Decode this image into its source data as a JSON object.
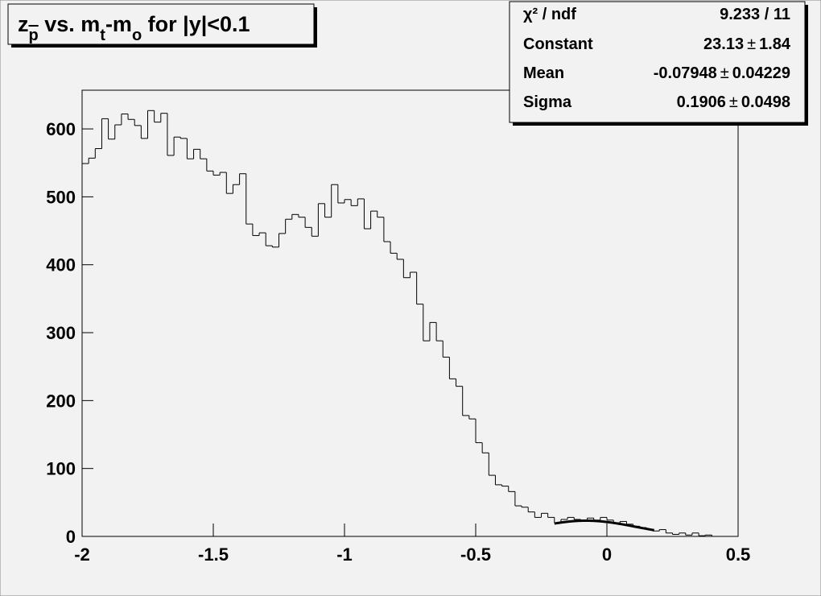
{
  "chart_data": {
    "type": "histogram",
    "title": [
      {
        "text": "z"
      },
      {
        "text": "p",
        "sub": true,
        "overline": true
      },
      {
        "text": " vs. m"
      },
      {
        "text": "t",
        "sub": true
      },
      {
        "text": "-m"
      },
      {
        "text": "o",
        "sub": true
      },
      {
        "text": " for |y|<0.1"
      }
    ],
    "bins": [
      -2,
      -1.975,
      -1.95,
      -1.925,
      -1.9,
      -1.875,
      -1.85,
      -1.825,
      -1.8,
      -1.775,
      -1.75,
      -1.725,
      -1.7,
      -1.675,
      -1.65,
      -1.625,
      -1.6,
      -1.575,
      -1.55,
      -1.525,
      -1.5,
      -1.475,
      -1.45,
      -1.425,
      -1.4,
      -1.375,
      -1.35,
      -1.325,
      -1.3,
      -1.275,
      -1.25,
      -1.225,
      -1.2,
      -1.175,
      -1.15,
      -1.125,
      -1.1,
      -1.075,
      -1.05,
      -1.025,
      -1,
      -0.975,
      -0.95,
      -0.925,
      -0.9,
      -0.875,
      -0.85,
      -0.825,
      -0.8,
      -0.775,
      -0.75,
      -0.725,
      -0.7,
      -0.675,
      -0.65,
      -0.625,
      -0.6,
      -0.575,
      -0.55,
      -0.525,
      -0.5,
      -0.475,
      -0.45,
      -0.425,
      -0.4,
      -0.375,
      -0.35,
      -0.325,
      -0.3,
      -0.275,
      -0.25,
      -0.225,
      -0.2,
      -0.175,
      -0.15,
      -0.125,
      -0.1,
      -0.075,
      -0.05,
      -0.025,
      0,
      0.025,
      0.05,
      0.075,
      0.1,
      0.125,
      0.15,
      0.175,
      0.2,
      0.225,
      0.25,
      0.275,
      0.3,
      0.325,
      0.35,
      0.375,
      0.4,
      0.425,
      0.45,
      0.475,
      0.5
    ],
    "values": [
      549,
      557,
      571,
      615,
      585,
      606,
      622,
      614,
      605,
      586,
      627,
      610,
      623,
      561,
      588,
      586,
      556,
      570,
      556,
      538,
      532,
      536,
      505,
      518,
      534,
      460,
      443,
      447,
      428,
      426,
      446,
      467,
      474,
      470,
      455,
      442,
      490,
      470,
      518,
      491,
      496,
      487,
      497,
      453,
      479,
      470,
      434,
      417,
      408,
      381,
      389,
      342,
      288,
      315,
      288,
      264,
      232,
      221,
      178,
      173,
      138,
      123,
      90,
      76,
      74,
      66,
      45,
      43,
      36,
      28,
      34,
      28,
      20,
      25,
      28,
      25,
      22,
      27,
      24,
      28,
      24,
      20,
      22,
      18,
      15,
      13,
      10,
      8,
      10,
      5,
      3,
      5,
      2,
      5,
      1,
      2,
      0,
      0,
      0,
      0
    ],
    "color": "#000000",
    "fit_color": "#000000",
    "xlim": [
      -2,
      0.5
    ],
    "ylim": [
      0,
      657
    ],
    "xticks": [
      -2,
      -1.5,
      -1,
      -0.5,
      0,
      0.5
    ],
    "yticks": [
      0,
      100,
      200,
      300,
      400,
      500,
      600
    ],
    "fit": {
      "chi2_label": "χ² / ndf",
      "chi2_ndf": "9.233 / 11",
      "params": [
        {
          "name": "Constant",
          "value": 23.13,
          "sign": "±",
          "error": 1.84
        },
        {
          "name": "Mean",
          "value": -0.07948,
          "sign": "±",
          "error": 0.04229
        },
        {
          "name": "Sigma",
          "value": 0.1906,
          "sign": "±",
          "error": 0.0498
        }
      ],
      "range": [
        -0.2,
        0.18
      ]
    }
  }
}
